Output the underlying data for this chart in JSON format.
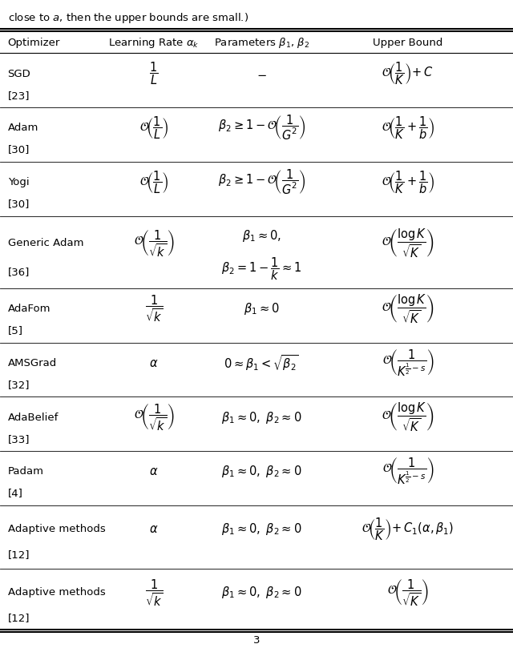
{
  "caption": "close to $a$, then the upper bounds are small.)",
  "header": [
    "Optimizer",
    "Learning Rate $\\alpha_k$",
    "Parameters $\\beta_1$, $\\beta_2$",
    "Upper Bound"
  ],
  "rows": [
    {
      "optimizer": "SGD",
      "ref": "[23]",
      "lr_idx": 0,
      "params_idx": 0,
      "bound_idx": 0
    },
    {
      "optimizer": "Adam",
      "ref": "[30]",
      "lr_idx": 1,
      "params_idx": 1,
      "bound_idx": 1
    },
    {
      "optimizer": "Yogi",
      "ref": "[30]",
      "lr_idx": 1,
      "params_idx": 1,
      "bound_idx": 1
    },
    {
      "optimizer": "Generic Adam",
      "ref": "[36]",
      "lr_idx": 2,
      "params_idx": 2,
      "bound_idx": 2
    },
    {
      "optimizer": "AdaFom",
      "ref": "[5]",
      "lr_idx": 3,
      "params_idx": 3,
      "bound_idx": 2
    },
    {
      "optimizer": "AMSGrad",
      "ref": "[32]",
      "lr_idx": 4,
      "params_idx": 4,
      "bound_idx": 3
    },
    {
      "optimizer": "AdaBelief",
      "ref": "[33]",
      "lr_idx": 2,
      "params_idx": 5,
      "bound_idx": 2
    },
    {
      "optimizer": "Padam",
      "ref": "[4]",
      "lr_idx": 4,
      "params_idx": 5,
      "bound_idx": 3
    },
    {
      "optimizer": "Adaptive methods",
      "ref": "[12]",
      "lr_idx": 4,
      "params_idx": 5,
      "bound_idx": 4
    },
    {
      "optimizer": "Adaptive methods",
      "ref": "[12]",
      "lr_idx": 3,
      "params_idx": 5,
      "bound_idx": 5
    }
  ],
  "lr_texts": [
    "$\\dfrac{1}{L}$",
    "$\\mathcal{O}\\!\\left(\\dfrac{1}{L}\\right)$",
    "$\\mathcal{O}\\!\\left(\\dfrac{1}{\\sqrt{k}}\\right)$",
    "$\\dfrac{1}{\\sqrt{k}}$",
    "$\\alpha$"
  ],
  "params_texts": [
    "$-$",
    "$\\beta_2 \\geq 1 - \\mathcal{O}\\!\\left(\\dfrac{1}{G^2}\\right)$",
    "two_line_generic_adam",
    "$\\beta_1 \\approx 0$",
    "$0 \\approx \\beta_1 < \\sqrt{\\beta_2}$",
    "$\\beta_1 \\approx 0,\\ \\beta_2 \\approx 0$"
  ],
  "bound_texts": [
    "$\\mathcal{O}\\!\\left(\\dfrac{1}{K}\\right)\\!+C$",
    "$\\mathcal{O}\\!\\left(\\dfrac{1}{K}+\\dfrac{1}{b}\\right)$",
    "$\\mathcal{O}\\!\\left(\\dfrac{\\log K}{\\sqrt{K}}\\right)$",
    "$\\mathcal{O}\\!\\left(\\dfrac{1}{K^{\\frac{1}{2}-s}}\\right)$",
    "$\\mathcal{O}\\!\\left(\\dfrac{1}{K}\\right)\\!+C_1(\\alpha, \\beta_1)$",
    "$\\mathcal{O}\\!\\left(\\dfrac{1}{\\sqrt{K}}\\right)$"
  ],
  "page_number": "3",
  "bg_color": "#ffffff",
  "text_color": "#000000",
  "line_color": "#000000",
  "row_weights": [
    1.2,
    1.2,
    1.2,
    1.6,
    1.2,
    1.2,
    1.2,
    1.2,
    1.4,
    1.4
  ]
}
